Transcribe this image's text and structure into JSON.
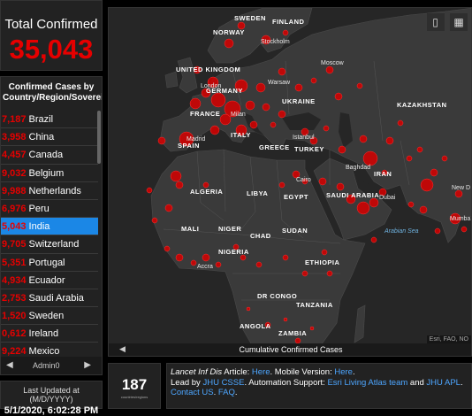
{
  "total": {
    "title": "Total Confirmed",
    "value": "35,043"
  },
  "list": {
    "title": "Confirmed Cases by Country/Region/Sovereignty",
    "items": [
      {
        "num": "7,187",
        "name": "Brazil"
      },
      {
        "num": "3,958",
        "name": "China"
      },
      {
        "num": "4,457",
        "name": "Canada"
      },
      {
        "num": "9,032",
        "name": "Belgium"
      },
      {
        "num": "9,988",
        "name": "Netherlands"
      },
      {
        "num": "6,976",
        "name": "Peru"
      },
      {
        "num": "5,043",
        "name": "India",
        "selected": true
      },
      {
        "num": "9,705",
        "name": "Switzerland"
      },
      {
        "num": "5,351",
        "name": "Portugal"
      },
      {
        "num": "4,934",
        "name": "Ecuador"
      },
      {
        "num": "2,753",
        "name": "Saudi Arabia"
      },
      {
        "num": "1,520",
        "name": "Sweden"
      },
      {
        "num": "0,612",
        "name": "Ireland"
      },
      {
        "num": "9,224",
        "name": "Mexico"
      }
    ],
    "pager_label": "Admin0",
    "pager_prev_icon": "triangle-left-icon",
    "pager_next_icon": "triangle-right-icon"
  },
  "updated": {
    "label": "Last Updated at (M/D/YYYY)",
    "value": "5/1/2020, 6:02:28 PM"
  },
  "map": {
    "footer_label": "Cumulative Confirmed Cases",
    "attribution": "Esri, FAO, NO",
    "tools": [
      {
        "icon": "bookmark-icon",
        "glyph": "▯"
      },
      {
        "icon": "grid-icon",
        "glyph": "▦"
      }
    ],
    "labels": {
      "sweden": "SWEDEN",
      "finland": "FINLAND",
      "norway": "NORWAY",
      "stockholm": "Stockholm",
      "uk": "UNITED KINGDOM",
      "london": "London",
      "moscow": "Moscow",
      "warsaw": "Warsaw",
      "germany": "GERMANY",
      "ukraine": "UKRAINE",
      "kazakhstan": "KAZAKHSTAN",
      "france": "FRANCE",
      "milan": "Milan",
      "madrid": "Madrid",
      "italy": "ITALY",
      "spain": "SPAIN",
      "greece": "GREECE",
      "istanbul": "Istanbul",
      "turkey": "TURKEY",
      "baghdad": "Baghdad",
      "iran": "IRAN",
      "cairo": "Cairo",
      "algeria": "ALGERIA",
      "libya": "LIBYA",
      "egypt": "EGYPT",
      "saudi": "SAUDI ARABIA",
      "dubai": "Dubai",
      "new_delhi": "New D",
      "mali": "MALI",
      "niger": "NIGER",
      "chad": "CHAD",
      "sudan": "SUDAN",
      "arabian_sea": "Arabian Sea",
      "mumbai": "Mumba",
      "nigeria": "NIGERIA",
      "ethiopia": "ETHIOPIA",
      "accra": "Accra",
      "dr_congo": "DR CONGO",
      "tanzania": "TANZANIA",
      "angola": "ANGOLA",
      "zambia": "ZAMBIA"
    }
  },
  "count": {
    "value": "187",
    "label": "countries/regions"
  },
  "info": {
    "lancet": "Lancet Inf Dis",
    "article_prefix": " Article: ",
    "here1": "Here",
    "mobile_prefix": ". Mobile Version: ",
    "here2": "Here",
    "period": ".",
    "led_prefix": "Lead by ",
    "jhu_csse": "JHU CSSE",
    "automation_prefix": ". Automation Support: ",
    "esri_team": "Esri Living Atlas team",
    "and": " and ",
    "jhu_apl": "JHU APL",
    "sep1": ". ",
    "contact": "Contact US",
    "sep2": ". ",
    "faq": "FAQ",
    "end": "."
  },
  "colors": {
    "accent_red": "#e60000",
    "select_blue": "#1b87e6",
    "link_blue": "#4da6ff",
    "land": "#3a3a3a",
    "sea": "#262626"
  }
}
